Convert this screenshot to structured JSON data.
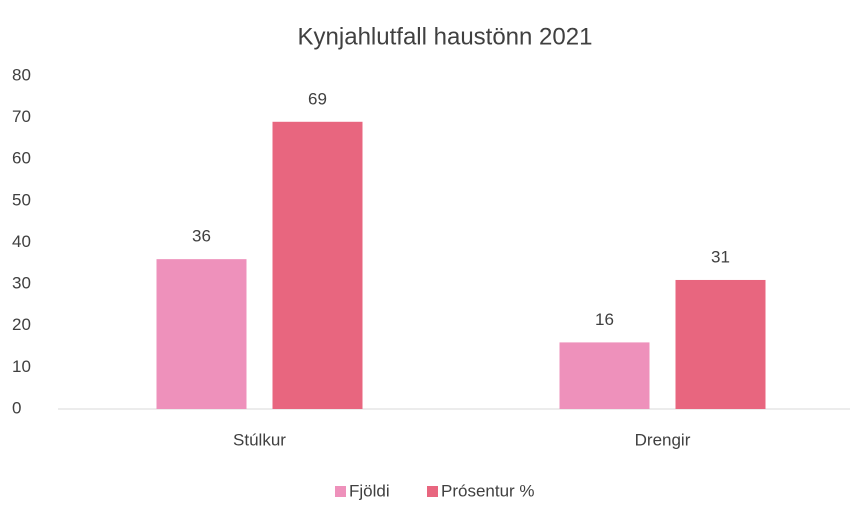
{
  "chart_data": {
    "type": "bar",
    "title": "Kynjahlutfall haustönn 2021",
    "categories": [
      "Stúlkur",
      "Drengir"
    ],
    "series": [
      {
        "name": "Fjöldi",
        "color": "#ee91bb",
        "values": [
          36,
          16
        ]
      },
      {
        "name": "Prósentur %",
        "color": "#e8667f",
        "values": [
          69,
          31
        ]
      }
    ],
    "ylim": [
      0,
      80
    ],
    "yticks": [
      0,
      10,
      20,
      30,
      40,
      50,
      60,
      70,
      80
    ],
    "grid": false,
    "legend": "bottom",
    "data_labels": true
  }
}
